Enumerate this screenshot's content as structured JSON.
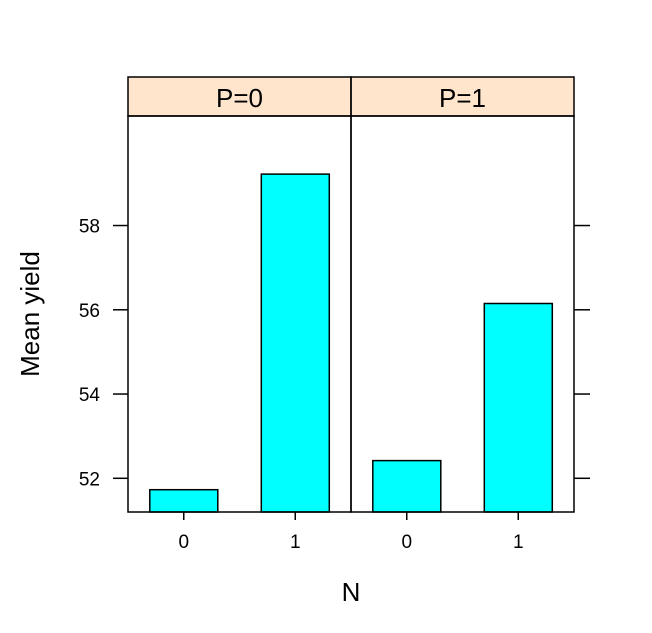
{
  "chart_data": {
    "type": "bar",
    "xlabel": "N",
    "ylabel": "Mean yield",
    "ylim": [
      51.2,
      60.6
    ],
    "yticks": [
      52,
      54,
      56,
      58
    ],
    "y_tick_labels": [
      "52",
      "54",
      "56",
      "58"
    ],
    "panels": [
      {
        "strip_label": "P=0",
        "categories": [
          "0",
          "1"
        ],
        "values": [
          51.73,
          59.22
        ]
      },
      {
        "strip_label": "P=1",
        "categories": [
          "0",
          "1"
        ],
        "values": [
          52.42,
          56.15
        ]
      }
    ],
    "colors": {
      "bar_fill": "#00FFFF",
      "strip_fill": "#FFE5CC",
      "frame": "#000000"
    }
  }
}
